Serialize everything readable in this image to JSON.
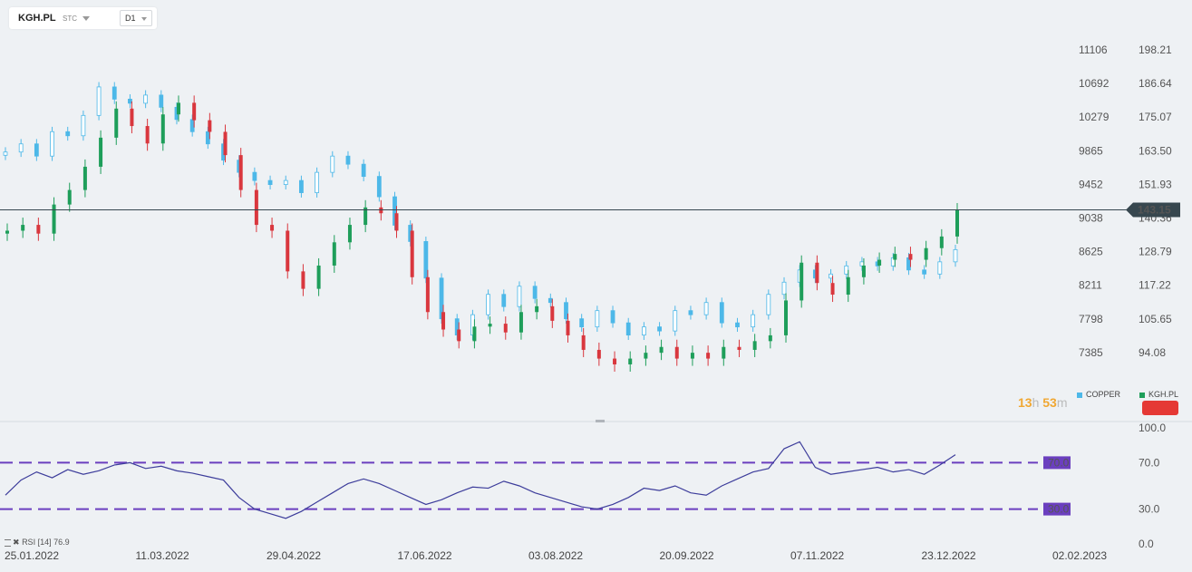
{
  "toolbar": {
    "symbol": "KGH.PL",
    "mode": "STC",
    "timeframe": "D1"
  },
  "indicators": {
    "countdown_hours": "13",
    "countdown_h_unit": "h",
    "countdown_minutes": "53",
    "countdown_m_unit": "m",
    "rsi_label": "RSI",
    "rsi_period": "[14]",
    "rsi_value": "76.9"
  },
  "colors": {
    "copper": "#4db8e8",
    "kgh": "#1e9e5a",
    "down": "#d9373e",
    "rsi_line": "#3d3d9b",
    "rsi_level": "#6b3fbf",
    "price_tag": "#37474f"
  },
  "chart_data": {
    "type": "candlestick",
    "series": [
      {
        "name": "COPPER",
        "axis": "left"
      },
      {
        "name": "KGH.PL",
        "axis": "right"
      }
    ],
    "x_ticks": [
      "25.01.2022",
      "11.03.2022",
      "29.04.2022",
      "17.06.2022",
      "03.08.2022",
      "20.09.2022",
      "07.11.2022",
      "23.12.2022",
      "02.02.2023"
    ],
    "left_axis_ticks": [
      "11106",
      "10692",
      "10279",
      "9865",
      "9452",
      "9038",
      "8625",
      "8211",
      "7798",
      "7385"
    ],
    "right_axis_ticks": [
      "198.21",
      "186.64",
      "175.07",
      "163.50",
      "151.93",
      "140.36",
      "128.79",
      "117.22",
      "105.65",
      "94.08"
    ],
    "last_price": "143.15",
    "kgh_close_approx": [
      136,
      138,
      135,
      145,
      150,
      158,
      168,
      178,
      172,
      166,
      176,
      180,
      174,
      170,
      162,
      150,
      138,
      136,
      122,
      116,
      124,
      132,
      138,
      144,
      142,
      136,
      120,
      108,
      102,
      98,
      103,
      104,
      101,
      108,
      110,
      105,
      100,
      95,
      92,
      90,
      92,
      94,
      96,
      92,
      94,
      92,
      96,
      95,
      98,
      100,
      112,
      125,
      118,
      114,
      120,
      124,
      126,
      128,
      126,
      130,
      134,
      143
    ],
    "copper_close_approx": [
      9850,
      9950,
      9800,
      10100,
      10050,
      10300,
      10650,
      10500,
      10450,
      10550,
      10400,
      10250,
      10100,
      9950,
      9750,
      9600,
      9500,
      9450,
      9500,
      9350,
      9600,
      9800,
      9700,
      9550,
      9300,
      8950,
      8750,
      8300,
      7800,
      7600,
      7850,
      8100,
      7950,
      8200,
      8050,
      8000,
      7800,
      7700,
      7900,
      7750,
      7600,
      7700,
      7650,
      7900,
      7850,
      8000,
      7750,
      7700,
      7850,
      8100,
      8250,
      8400,
      8300,
      8350,
      8450,
      8500,
      8450,
      8550,
      8400,
      8350,
      8500,
      8650
    ],
    "rsi": {
      "name": "RSI [14]",
      "levels": [
        70.0,
        30.0
      ],
      "y_ticks": [
        "100.0",
        "70.0",
        "30.0",
        "0.0"
      ],
      "level_labels": [
        "70.0",
        "30.0"
      ],
      "values": [
        42,
        55,
        62,
        57,
        64,
        60,
        63,
        68,
        70,
        65,
        67,
        63,
        61,
        58,
        55,
        40,
        30,
        26,
        22,
        28,
        36,
        44,
        52,
        56,
        52,
        46,
        40,
        34,
        38,
        44,
        49,
        48,
        54,
        50,
        44,
        40,
        36,
        32,
        30,
        34,
        40,
        48,
        46,
        50,
        44,
        42,
        50,
        56,
        62,
        65,
        82,
        88,
        66,
        60,
        62,
        64,
        66,
        62,
        64,
        60,
        68,
        76.9
      ]
    }
  }
}
